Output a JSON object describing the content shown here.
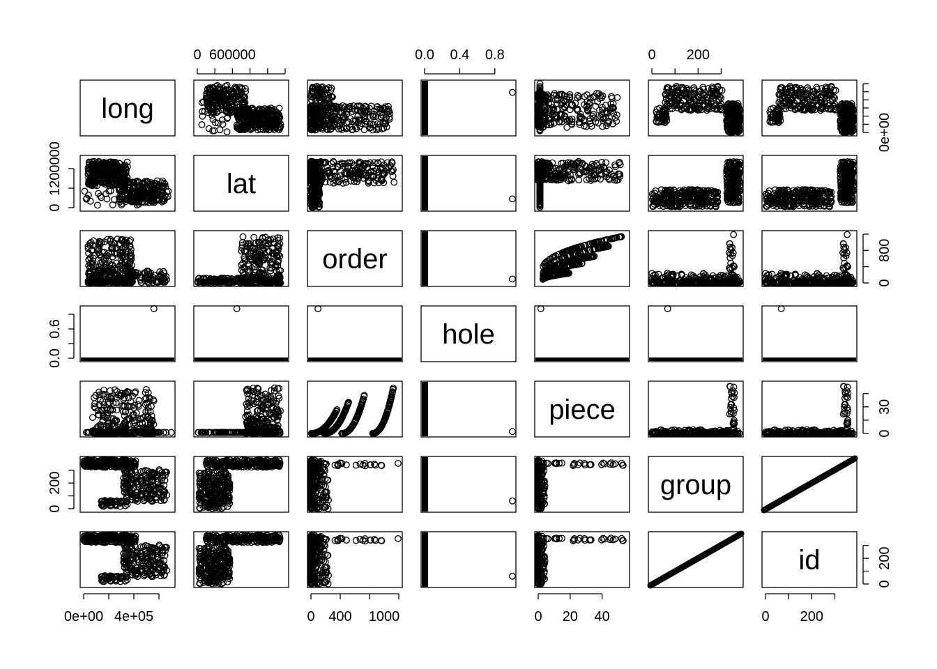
{
  "chart_data": {
    "type": "scatter",
    "kind": "scatterplot-matrix",
    "variables": [
      "long",
      "lat",
      "order",
      "hole",
      "piece",
      "group",
      "id"
    ],
    "ranges": {
      "long": [
        0,
        700000
      ],
      "lat": [
        0,
        1500000
      ],
      "order": [
        0,
        1200
      ],
      "hole": [
        0,
        1
      ],
      "piece": [
        0,
        55
      ],
      "group": [
        0,
        380
      ],
      "id": [
        0,
        380
      ]
    },
    "ticks": {
      "long": {
        "side": "bottom",
        "values": [
          0,
          400000
        ],
        "labels": [
          "0e+00",
          "4e+05"
        ]
      },
      "lat": {
        "side": "top",
        "values": [
          0,
          600000
        ],
        "labels": [
          "0",
          "600000"
        ]
      },
      "order": {
        "side": "bottom",
        "values": [
          0,
          400,
          1000
        ],
        "labels": [
          "0",
          "400",
          "1000"
        ]
      },
      "hole": {
        "side": "top",
        "values": [
          0,
          0.4,
          0.8
        ],
        "labels": [
          "0.0",
          "0.4",
          "0.8"
        ]
      },
      "piece": {
        "side": "bottom",
        "values": [
          0,
          20,
          40
        ],
        "labels": [
          "0",
          "20",
          "40"
        ]
      },
      "group": {
        "side": "top",
        "values": [
          0,
          200
        ],
        "labels": [
          "0",
          "200"
        ]
      },
      "id": {
        "side": "bottom",
        "values": [
          0,
          200
        ],
        "labels": [
          "0",
          "200"
        ]
      }
    },
    "row_ticks": {
      "long": {
        "side": "right",
        "values": [
          0
        ],
        "labels": [
          "0e+00"
        ]
      },
      "lat": {
        "side": "left",
        "values": [
          0,
          1200000
        ],
        "labels": [
          "0",
          "1200000"
        ]
      },
      "order": {
        "side": "right",
        "values": [
          0,
          800
        ],
        "labels": [
          "0",
          "800"
        ]
      },
      "hole": {
        "side": "left",
        "values": [
          0,
          0.6
        ],
        "labels": [
          "0.0",
          "0.6"
        ]
      },
      "piece": {
        "side": "right",
        "values": [
          0,
          30
        ],
        "labels": [
          "0",
          "30"
        ]
      },
      "group": {
        "side": "left",
        "values": [
          0,
          200
        ],
        "labels": [
          "0",
          "200"
        ]
      },
      "id": {
        "side": "right",
        "values": [
          0,
          200
        ],
        "labels": [
          "0",
          "200"
        ]
      }
    },
    "marker": "open-circle",
    "grid": false,
    "legend": "none"
  }
}
